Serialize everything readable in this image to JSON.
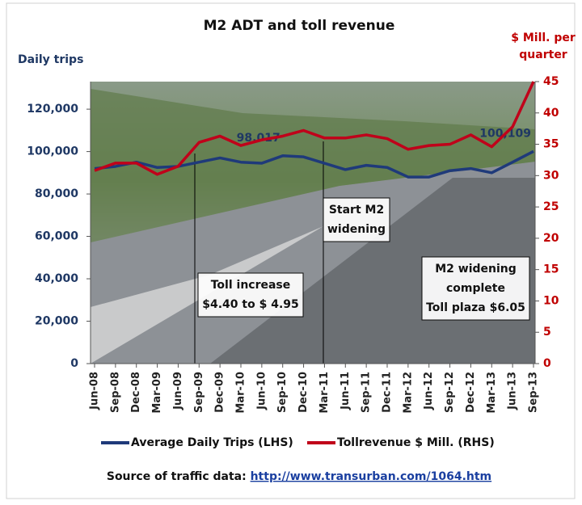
{
  "chart_data": {
    "type": "line",
    "title": "M2 ADT and toll revenue",
    "ylabel": "Daily trips",
    "y2label": [
      "$ Mill. per",
      "quarter"
    ],
    "categories": [
      "Jun-08",
      "Sep-08",
      "Dec-08",
      "Mar-09",
      "Jun-09",
      "Sep-09",
      "Dec-09",
      "Mar-10",
      "Jun-10",
      "Sep-10",
      "Dec-10",
      "Mar-11",
      "Jun-11",
      "Sep-11",
      "Dec-11",
      "Mar-12",
      "Jun-12",
      "Sep-12",
      "Dec-12",
      "Mar-13",
      "Jun-13",
      "Sep-13"
    ],
    "series": [
      {
        "name": "Average Daily Trips (LHS)",
        "color": "#1f3a7a",
        "values": [
          92000,
          93000,
          95000,
          92500,
          93000,
          95000,
          97000,
          95000,
          94500,
          98017,
          97500,
          94500,
          91500,
          93500,
          92500,
          88000,
          88000,
          91000,
          92000,
          90000,
          95000,
          100109
        ],
        "value_labels": [
          null,
          null,
          null,
          null,
          null,
          null,
          null,
          null,
          null,
          "98,017",
          null,
          null,
          null,
          null,
          null,
          null,
          null,
          null,
          null,
          null,
          null,
          "100,109"
        ]
      },
      {
        "name": "Tollrevenue $ Mill. (RHS)",
        "color": "#c0001a",
        "axis": "y2",
        "values": [
          30.8,
          32,
          32,
          30.2,
          31.5,
          35.3,
          36.3,
          34.8,
          35.7,
          36.3,
          37.2,
          36,
          36,
          36.5,
          35.9,
          34.2,
          34.8,
          35,
          36.5,
          34.6,
          37.8,
          45
        ]
      }
    ],
    "ylim": [
      0,
      133000
    ],
    "yticks": [
      0,
      {
        "value": 20000,
        "label": "20,000"
      },
      {
        "value": 40000,
        "label": "40,000"
      },
      {
        "value": 60000,
        "label": "60,000"
      },
      {
        "value": 80000,
        "label": "80,000"
      },
      {
        "value": 100000,
        "label": "100,000"
      },
      {
        "value": 120000,
        "label": "120,000"
      }
    ],
    "y2lim": [
      0,
      45
    ],
    "y2ticks": [
      0,
      5,
      10,
      15,
      20,
      25,
      30,
      35,
      40,
      45
    ],
    "annotations": [
      {
        "lines": [
          "Start M2",
          "widening"
        ]
      },
      {
        "lines": [
          "Toll increase",
          "$4.40 to $ 4.95"
        ]
      },
      {
        "lines": [
          "M2 widening",
          "complete",
          "Toll plaza $6.05"
        ]
      }
    ],
    "source": {
      "text": "Source of traffic data: ",
      "link": "http://www.transurban.com/1064.htm"
    }
  }
}
